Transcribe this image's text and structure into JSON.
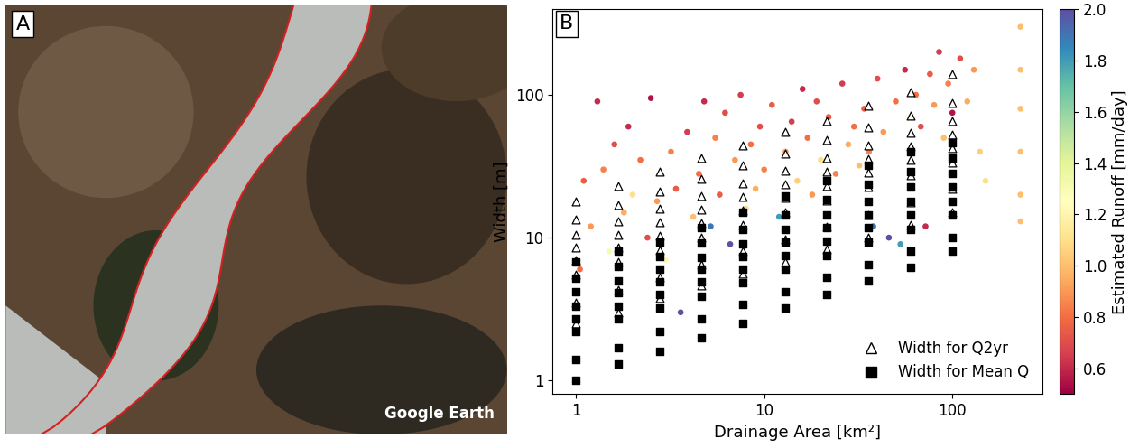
{
  "chart_data": [
    {
      "type": "image",
      "label": "A",
      "source": "Google Earth"
    },
    {
      "type": "scatter",
      "label": "B",
      "x_label": "Drainage Area [km²]",
      "y_label": "Width [m]",
      "log": true,
      "xlim": [
        0.75,
        300
      ],
      "xticks": [
        1,
        10,
        100
      ],
      "ylim": [
        0.8,
        400
      ],
      "yticks": [
        1,
        10,
        100
      ],
      "legend": "lower right",
      "points": {
        "x": [
          1.05,
          1.1,
          1.2,
          1.3,
          1.4,
          1.5,
          1.6,
          1.8,
          1.9,
          2.0,
          2.2,
          2.4,
          2.5,
          2.7,
          3.0,
          3.2,
          3.4,
          3.6,
          3.9,
          4.2,
          4.5,
          4.8,
          5.2,
          5.5,
          5.8,
          6.2,
          6.6,
          7.0,
          7.5,
          8.0,
          8.5,
          9.0,
          9.5,
          10.0,
          11.0,
          12.0,
          13.0,
          14.0,
          15.0,
          16.0,
          17.0,
          18.0,
          19.0,
          20.0,
          22.0,
          24.0,
          26.0,
          28.0,
          30.0,
          32.0,
          34.0,
          36.0,
          38.0,
          40.0,
          43.0,
          46.0,
          50.0,
          53.0,
          56.0,
          60.0,
          64.0,
          68.0,
          72.0,
          76.0,
          80.0,
          85.0,
          90.0,
          95.0,
          100.0,
          110.0,
          120.0,
          130.0,
          140.0,
          150.0,
          230.0,
          230.0,
          230.0,
          230.0,
          230.0,
          230.0
        ],
        "values": [
          6,
          25,
          12,
          90,
          30,
          8,
          45,
          15,
          60,
          20,
          35,
          10,
          95,
          18,
          7,
          40,
          22,
          3,
          55,
          14,
          28,
          90,
          12,
          50,
          20,
          75,
          9,
          35,
          100,
          16,
          45,
          22,
          60,
          30,
          85,
          14,
          40,
          65,
          25,
          110,
          50,
          20,
          90,
          35,
          70,
          28,
          120,
          45,
          60,
          32,
          80,
          40,
          12,
          130,
          55,
          10,
          90,
          9,
          150,
          70,
          100,
          60,
          12,
          140,
          85,
          200,
          50,
          120,
          75,
          180,
          90,
          150,
          40,
          25,
          300,
          150,
          80,
          40,
          20,
          13
        ],
        "runoff": [
          0.8,
          0.75,
          0.9,
          0.6,
          0.85,
          1.3,
          0.7,
          0.95,
          0.6,
          1.1,
          0.8,
          0.7,
          0.55,
          0.9,
          1.2,
          0.85,
          0.75,
          2.0,
          0.65,
          1.0,
          0.8,
          0.6,
          1.9,
          0.85,
          0.75,
          0.7,
          2.0,
          0.9,
          0.65,
          1.1,
          0.8,
          0.95,
          0.7,
          0.85,
          0.75,
          1.8,
          0.9,
          0.65,
          1.05,
          0.6,
          0.8,
          0.9,
          0.7,
          1.1,
          0.75,
          0.85,
          0.65,
          0.95,
          0.8,
          1.0,
          0.75,
          0.85,
          1.9,
          0.7,
          0.9,
          2.0,
          0.8,
          1.8,
          0.6,
          1.0,
          0.8,
          0.7,
          0.6,
          0.75,
          0.9,
          0.65,
          1.0,
          0.85,
          0.55,
          0.7,
          0.95,
          0.9,
          1.05,
          1.1,
          1.0,
          1.0,
          1.0,
          1.0,
          1.0,
          1.0
        ]
      },
      "series": [
        {
          "name": "Width for Q2yr",
          "marker": "triangle",
          "color": "#000000",
          "x": [
            1,
            1,
            1,
            1,
            1,
            1,
            1,
            1,
            1.67,
            1.67,
            1.67,
            1.67,
            1.67,
            1.67,
            1.67,
            1.67,
            2.78,
            2.78,
            2.78,
            2.78,
            2.78,
            2.78,
            2.78,
            2.78,
            4.64,
            4.64,
            4.64,
            4.64,
            4.64,
            4.64,
            4.64,
            4.64,
            7.74,
            7.74,
            7.74,
            7.74,
            7.74,
            7.74,
            7.74,
            7.74,
            12.9,
            12.9,
            12.9,
            12.9,
            12.9,
            12.9,
            12.9,
            12.9,
            21.5,
            21.5,
            21.5,
            21.5,
            21.5,
            21.5,
            21.5,
            21.5,
            35.9,
            35.9,
            35.9,
            35.9,
            35.9,
            35.9,
            35.9,
            35.9,
            59.9,
            59.9,
            59.9,
            59.9,
            59.9,
            59.9,
            59.9,
            59.9,
            100,
            100,
            100,
            100,
            100,
            100,
            100,
            100
          ],
          "values": [
            2.5,
            3.5,
            5.5,
            7.0,
            8.5,
            10.5,
            13.5,
            18.0,
            3.0,
            4.3,
            6.8,
            8.5,
            10.5,
            13.0,
            17.0,
            23.0,
            3.8,
            5.3,
            8.2,
            10.3,
            12.8,
            16.0,
            21.0,
            29.0,
            4.6,
            6.5,
            10.0,
            12.6,
            15.7,
            19.5,
            26.0,
            36.0,
            5.6,
            8.0,
            12.2,
            15.5,
            19.3,
            24.0,
            32.0,
            44.0,
            6.8,
            9.8,
            15.0,
            19.0,
            23.5,
            29.5,
            39.0,
            55.0,
            8.3,
            12.0,
            18.3,
            23.0,
            29.0,
            36.0,
            48.0,
            66.0,
            10.0,
            14.5,
            22.5,
            28.5,
            35.5,
            44.0,
            59.0,
            84.0,
            12.3,
            17.8,
            27.5,
            35.0,
            43.5,
            54.0,
            72.0,
            104.0,
            15.0,
            22.0,
            33.5,
            42.5,
            53.0,
            66.0,
            88.0,
            140.0
          ]
        },
        {
          "name": "Width for Mean Q",
          "marker": "square",
          "color": "#000000",
          "x": [
            1,
            1,
            1,
            1,
            1,
            1,
            1,
            1,
            1.67,
            1.67,
            1.67,
            1.67,
            1.67,
            1.67,
            1.67,
            1.67,
            2.78,
            2.78,
            2.78,
            2.78,
            2.78,
            2.78,
            2.78,
            2.78,
            4.64,
            4.64,
            4.64,
            4.64,
            4.64,
            4.64,
            4.64,
            4.64,
            7.74,
            7.74,
            7.74,
            7.74,
            7.74,
            7.74,
            7.74,
            7.74,
            12.9,
            12.9,
            12.9,
            12.9,
            12.9,
            12.9,
            12.9,
            12.9,
            21.5,
            21.5,
            21.5,
            21.5,
            21.5,
            21.5,
            21.5,
            21.5,
            35.9,
            35.9,
            35.9,
            35.9,
            35.9,
            35.9,
            35.9,
            35.9,
            59.9,
            59.9,
            59.9,
            59.9,
            59.9,
            59.9,
            59.9,
            59.9,
            100,
            100,
            100,
            100,
            100,
            100,
            100,
            100
          ],
          "values": [
            1.0,
            1.4,
            2.2,
            2.7,
            3.3,
            4.2,
            5.2,
            6.8,
            1.3,
            1.7,
            2.7,
            3.3,
            4.1,
            5.0,
            6.3,
            8.0,
            1.6,
            2.2,
            3.2,
            4.0,
            4.9,
            6.0,
            7.4,
            9.3,
            2.0,
            2.7,
            3.9,
            4.9,
            6.0,
            7.3,
            9.2,
            11.8,
            2.5,
            3.4,
            4.8,
            6.0,
            7.4,
            9.1,
            11.5,
            15.0,
            3.2,
            4.2,
            6.0,
            7.5,
            9.3,
            11.5,
            14.5,
            19.5,
            4.0,
            5.3,
            7.5,
            9.4,
            11.7,
            14.5,
            18.5,
            25.0,
            5.0,
            6.5,
            9.3,
            11.8,
            14.5,
            18.0,
            23.5,
            32.0,
            6.2,
            8.0,
            11.5,
            14.5,
            18.0,
            22.5,
            29.0,
            40.0,
            8.0,
            10.0,
            14.5,
            18.0,
            22.5,
            28.0,
            36.0,
            46.0
          ]
        }
      ],
      "colorbar": {
        "label": "Estimated Runoff [mm/day]",
        "range": [
          0.5,
          2.0
        ],
        "ticks": [
          {
            "value": 0.6,
            "label": "0.6"
          },
          {
            "value": 0.8,
            "label": "0.8"
          },
          {
            "value": 1.0,
            "label": "1.0"
          },
          {
            "value": 1.2,
            "label": "1.2"
          },
          {
            "value": 1.4,
            "label": "1.4"
          },
          {
            "value": 1.6,
            "label": "1.6"
          },
          {
            "value": 1.8,
            "label": "1.8"
          },
          {
            "value": 2.0,
            "label": "2.0"
          }
        ]
      }
    }
  ]
}
